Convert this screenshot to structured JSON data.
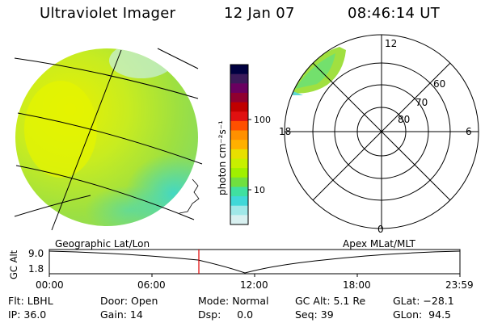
{
  "header": {
    "title": "Ultraviolet Imager",
    "date": "12 Jan 07",
    "time": "08:46:14 UT"
  },
  "colorbar": {
    "unit_label": "photon cm⁻²s⁻¹",
    "tick_100": "100",
    "tick_10": "10",
    "colors": [
      "#000040",
      "#3b1a5a",
      "#6a0060",
      "#900030",
      "#c00000",
      "#e01010",
      "#ff5000",
      "#ff9000",
      "#ffb000",
      "#e8e000",
      "#c8f000",
      "#a0f000",
      "#70e040",
      "#40e0a0",
      "#40d8d8",
      "#a0e8e8",
      "#d8f0f0"
    ]
  },
  "polar_plot": {
    "label_12": "12",
    "label_18": "18",
    "label_6": "6",
    "label_0": "0",
    "label_60": "60",
    "label_70": "70",
    "label_80": "80"
  },
  "timeline": {
    "left_label": "Geographic Lat/Lon",
    "right_label": "Apex MLat/MLT",
    "axis_label": "GC Alt",
    "y_max": "9.0",
    "y_min": "1.8",
    "ticks": [
      "00:00",
      "06:00",
      "12:00",
      "18:00",
      "23:59"
    ],
    "marker_color": "#e00000"
  },
  "status": {
    "filter": "Flt: LBHL",
    "ip": "IP: 36.0",
    "door": "Door: Open",
    "gain": "Gain: 14",
    "mode": "Mode: Normal",
    "dsp": "Dsp:     0.0",
    "gc_alt": "GC Alt: 5.1 Re",
    "seq": "Seq: 39",
    "glat": "GLat: −28.1",
    "glon": "GLon:  94.5"
  }
}
